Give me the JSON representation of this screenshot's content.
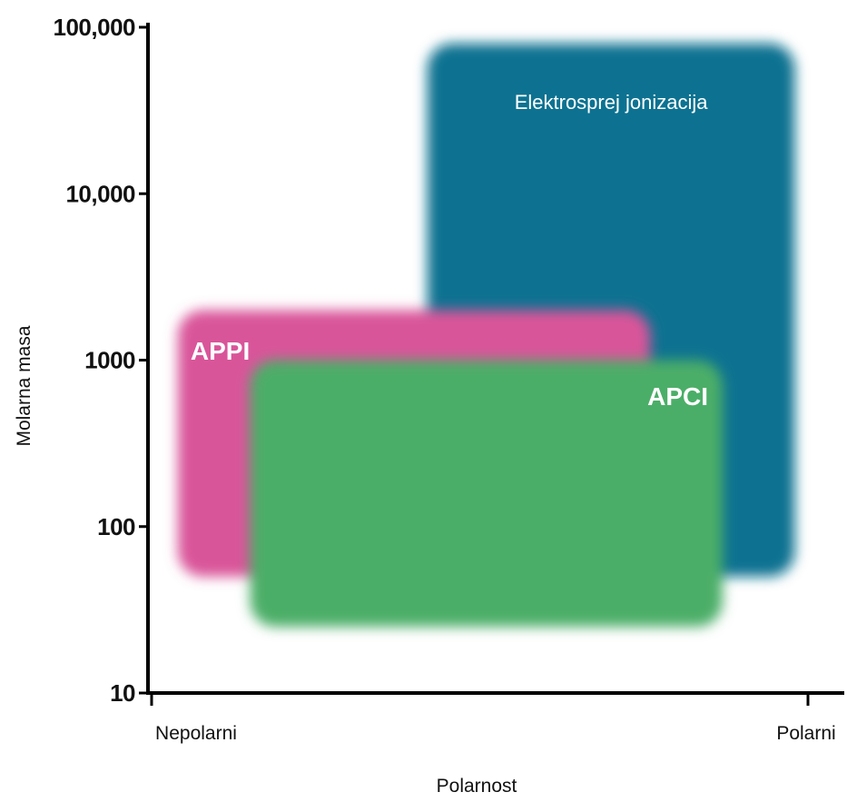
{
  "chart_data": {
    "type": "area",
    "xlabel": "Polarnost",
    "ylabel": "Molarna masa",
    "x_ticks": [
      "Nepolarni",
      "Polarni"
    ],
    "xlim": [
      0,
      1
    ],
    "y_scale": "log",
    "ylim": [
      10,
      100000
    ],
    "y_ticks": [
      {
        "value": 10,
        "label": "10"
      },
      {
        "value": 100,
        "label": "100"
      },
      {
        "value": 1000,
        "label": "1000"
      },
      {
        "value": 10000,
        "label": "10,000"
      },
      {
        "value": 100000,
        "label": "100,000"
      }
    ],
    "grid": false,
    "regions": [
      {
        "name": "Elektrosprej jonizacija",
        "color": "#0b7291",
        "x": [
          0.42,
          0.98
        ],
        "y": [
          50,
          80000
        ]
      },
      {
        "name": "APPI",
        "color": "#d9559a",
        "x": [
          0.04,
          0.76
        ],
        "y": [
          50,
          2000
        ]
      },
      {
        "name": "APCI",
        "color": "#4cae67",
        "x": [
          0.15,
          0.87
        ],
        "y": [
          25,
          1000
        ]
      }
    ]
  }
}
